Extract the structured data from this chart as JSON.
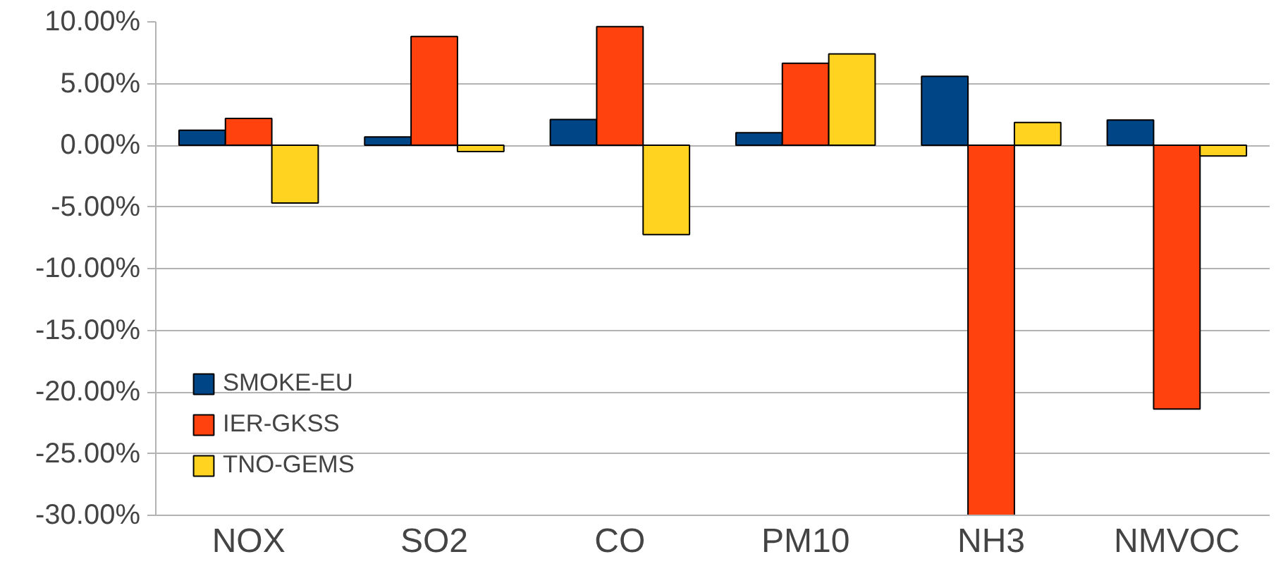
{
  "chart_data": {
    "type": "bar",
    "categories": [
      "NOX",
      "SO2",
      "CO",
      "PM10",
      "NH3",
      "NMVOC"
    ],
    "series": [
      {
        "name": "SMOKE-EU",
        "color": "#004586",
        "values": [
          1.22,
          0.67,
          2.09,
          1.02,
          5.59,
          2.05
        ]
      },
      {
        "name": "IER-GKSS",
        "color": "#ff420e",
        "values": [
          2.17,
          8.82,
          9.61,
          6.65,
          -30.0,
          -21.38
        ]
      },
      {
        "name": "TNO-GEMS",
        "color": "#ffd320",
        "values": [
          -4.69,
          -0.51,
          -7.24,
          7.4,
          1.85,
          -0.87
        ]
      }
    ],
    "ylim": [
      -30,
      10
    ],
    "yticks": [
      {
        "value": 10,
        "label": "10.00%"
      },
      {
        "value": 5,
        "label": "5.00%"
      },
      {
        "value": 0,
        "label": "0.00%"
      },
      {
        "value": -5,
        "label": "-5.00%"
      },
      {
        "value": -10,
        "label": "-10.00%"
      },
      {
        "value": -15,
        "label": "-15.00%"
      },
      {
        "value": -20,
        "label": "-20.00%"
      },
      {
        "value": -25,
        "label": "-25.00%"
      },
      {
        "value": -30,
        "label": "-30.00%"
      }
    ],
    "grid": "y",
    "legend": "bottom left"
  }
}
